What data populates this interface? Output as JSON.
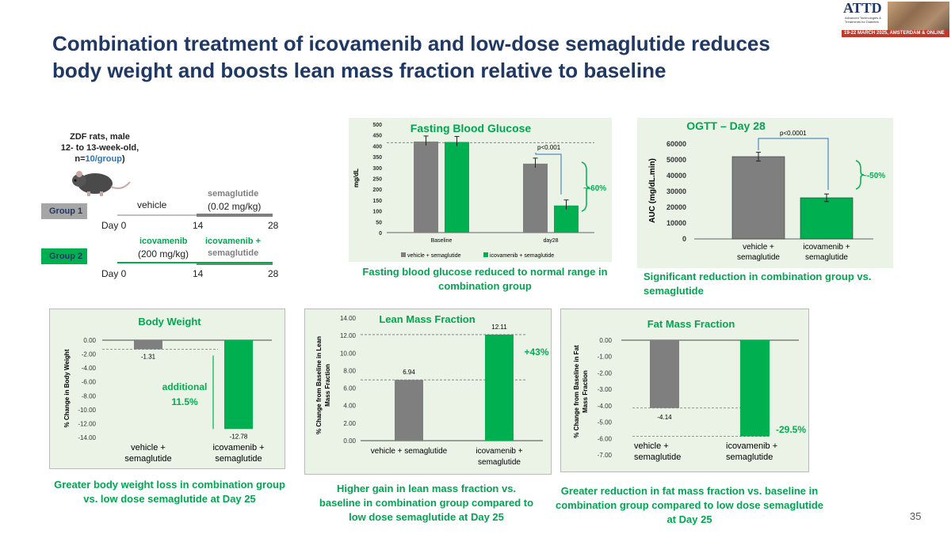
{
  "slide": {
    "title_line1": "Combination treatment of icovamenib and low-dose semaglutide reduces",
    "title_line2": "body weight and boosts lean mass fraction relative to baseline",
    "page_number": "35",
    "logo": {
      "name": "ATTD",
      "subtitle": "Advanced Technologies & Treatments for Diabetes",
      "banner": "19-22 MARCH 2025, AMSTERDAM & ONLINE"
    }
  },
  "design": {
    "subject_line1": "ZDF rats, male",
    "subject_line2": "12- to 13-week-old,",
    "subject_line3_prefix": "n=",
    "subject_line3_n": "10/group",
    "subject_line3_suffix": ")",
    "group1_label": "Group 1",
    "group2_label": "Group 2",
    "g1_vehicle": "vehicle",
    "g1_sema": "semaglutide",
    "g1_sema_dose": "(0.02 mg/kg)",
    "g2_ico": "icovamenib",
    "g2_ico_dose": "(200 mg/kg)",
    "g2_ico_plus": "icovamenib +",
    "g2_sema": "semaglutide",
    "days": [
      "Day 0",
      "14",
      "28"
    ]
  },
  "captions": {
    "fbg": "Fasting blood glucose reduced to normal range in combination group",
    "ogtt": "Significant reduction in combination group vs. semaglutide",
    "bw": "Greater body weight loss in combination group vs. low dose semaglutide at Day 25",
    "lean": "Higher gain in lean mass fraction vs. baseline in combination group compared to low dose semaglutide at Day 25",
    "fat": "Greater reduction in fat mass fraction vs. baseline in combination group compared to low dose semaglutide at Day 25"
  },
  "colors": {
    "gray": "#7f7f7f",
    "green": "#00b050",
    "title": "#1f3864",
    "caption": "#00a651"
  },
  "chart_data": [
    {
      "id": "fbg",
      "type": "bar",
      "title": "Fasting Blood Glucose",
      "ylabel": "mg/dL",
      "ylim": [
        0,
        500
      ],
      "yticks": [
        "0",
        "50",
        "100",
        "150",
        "200",
        "250",
        "300",
        "350",
        "400",
        "450",
        "500"
      ],
      "categories": [
        "Baseline",
        "day28"
      ],
      "series": [
        {
          "name": "vehicle + semaglutide",
          "values": [
            420,
            318
          ]
        },
        {
          "name": "icovamenib + semaglutide",
          "values": [
            418,
            125
          ]
        }
      ],
      "reference_line": 415,
      "annotations": {
        "pvalue": "p<0.001",
        "change": "~-60%"
      },
      "legend": [
        "vehicle + semaglutide",
        "icovamenib + semaglutide"
      ]
    },
    {
      "id": "ogtt",
      "type": "bar",
      "title": "OGTT – Day 28",
      "ylabel": "AUC (mg/dL.min)",
      "ylim": [
        0,
        60000
      ],
      "yticks": [
        "0",
        "10000",
        "20000",
        "30000",
        "40000",
        "50000",
        "60000"
      ],
      "categories": [
        "vehicle + semaglutide",
        "icovamenib + semaglutide"
      ],
      "cat_lines": [
        [
          "vehicle +",
          "semaglutide"
        ],
        [
          "icovamenib +",
          "semaglutide"
        ]
      ],
      "values": [
        52000,
        26000
      ],
      "annotations": {
        "pvalue": "p<0.0001",
        "change": "~-50%"
      }
    },
    {
      "id": "bw",
      "type": "bar",
      "title": "Body Weight",
      "ylabel": "% Change in Body Weight",
      "ylim": [
        -14,
        0
      ],
      "yticks": [
        "0.00",
        "-2.00",
        "-4.00",
        "-6.00",
        "-8.00",
        "-10.00",
        "-12.00",
        "-14.00"
      ],
      "categories": [
        "vehicle + semaglutide",
        "icovamenib + semaglutide"
      ],
      "cat_lines": [
        [
          "vehicle +",
          "semaglutide"
        ],
        [
          "icovamenib +",
          "semaglutide"
        ]
      ],
      "values": [
        -1.31,
        -12.78
      ],
      "value_labels": [
        "-1.31",
        "-12.78"
      ],
      "annotations": {
        "change_line1": "additional",
        "change_line2": "11.5%"
      }
    },
    {
      "id": "lean",
      "type": "bar",
      "title": "Lean Mass Fraction",
      "ylabel_line1": "% Change from Baseline in Lean",
      "ylabel_line2": "Mass Fraction",
      "ylim": [
        0,
        14
      ],
      "yticks": [
        "0.00",
        "2.00",
        "4.00",
        "6.00",
        "8.00",
        "10.00",
        "12.00",
        "14.00"
      ],
      "categories": [
        "vehicle + semaglutide",
        "icovamenib + semaglutide"
      ],
      "cat_lines": [
        [
          "vehicle + semaglutide"
        ],
        [
          "icovamenib +",
          "semaglutide"
        ]
      ],
      "values": [
        6.94,
        12.11
      ],
      "value_labels": [
        "6.94",
        "12.11"
      ],
      "annotations": {
        "change": "+43%"
      }
    },
    {
      "id": "fat",
      "type": "bar",
      "title": "Fat Mass Fraction",
      "ylabel_line1": "% Change from Baseline in Fat",
      "ylabel_line2": "Mass Fraction",
      "ylim": [
        -7,
        0
      ],
      "yticks": [
        "0.00",
        "-1.00",
        "-2.00",
        "-3.00",
        "-4.00",
        "-5.00",
        "-6.00",
        "-7.00"
      ],
      "categories": [
        "vehicle + semaglutide",
        "icovamenib + semaglutide"
      ],
      "cat_lines": [
        [
          "vehicle +",
          "semaglutide"
        ],
        [
          "icovamenib +",
          "semaglutide"
        ]
      ],
      "values": [
        -4.14,
        -5.87
      ],
      "value_labels": [
        "-4.14",
        ""
      ],
      "annotations": {
        "change": "-29.5%"
      }
    }
  ]
}
